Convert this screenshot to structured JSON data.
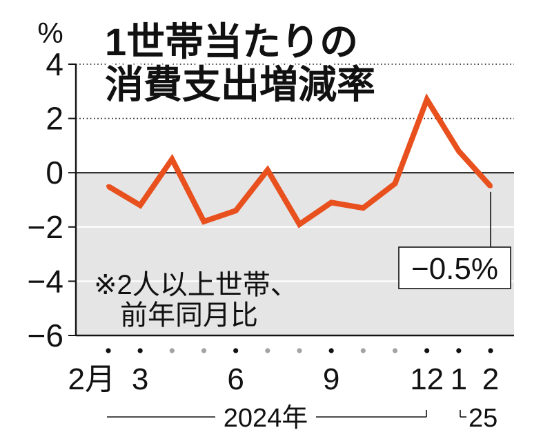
{
  "chart_data": {
    "type": "line",
    "title": [
      "1世帯当たりの",
      "消費支出増減率"
    ],
    "ylabel": "%",
    "xlabel": "",
    "ylim": [
      -6,
      4
    ],
    "yticks": [
      4,
      2,
      0,
      -2,
      -4,
      -6
    ],
    "ytick_labels": [
      "4",
      "2",
      "0",
      "−2",
      "−4",
      "−6"
    ],
    "x": [
      "2024-02",
      "2024-03",
      "2024-04",
      "2024-05",
      "2024-06",
      "2024-07",
      "2024-08",
      "2024-09",
      "2024-10",
      "2024-11",
      "2024-12",
      "2025-01",
      "2025-02"
    ],
    "xtick_labels": [
      "2月",
      "3",
      "",
      "",
      "6",
      "",
      "",
      "9",
      "",
      "",
      "12",
      "1",
      "2"
    ],
    "year_labels": [
      "2024年",
      "25"
    ],
    "series": [
      {
        "values": [
          -0.5,
          -1.2,
          0.5,
          -1.8,
          -1.4,
          0.1,
          -1.9,
          -1.1,
          -1.3,
          -0.4,
          2.7,
          0.8,
          -0.5
        ]
      }
    ],
    "grid": {
      "dotted_above_zero": [
        4,
        2
      ],
      "shaded_below_zero": true
    },
    "annotations": {
      "note": [
        "※2人以上世帯、",
        "前年同月比"
      ],
      "last_value_callout": "−0.5%"
    }
  },
  "colors": {
    "line": "#e8501e",
    "shade": "#e5e5e5",
    "axis": "#111111",
    "minor_dot": "#a3a3a3"
  }
}
